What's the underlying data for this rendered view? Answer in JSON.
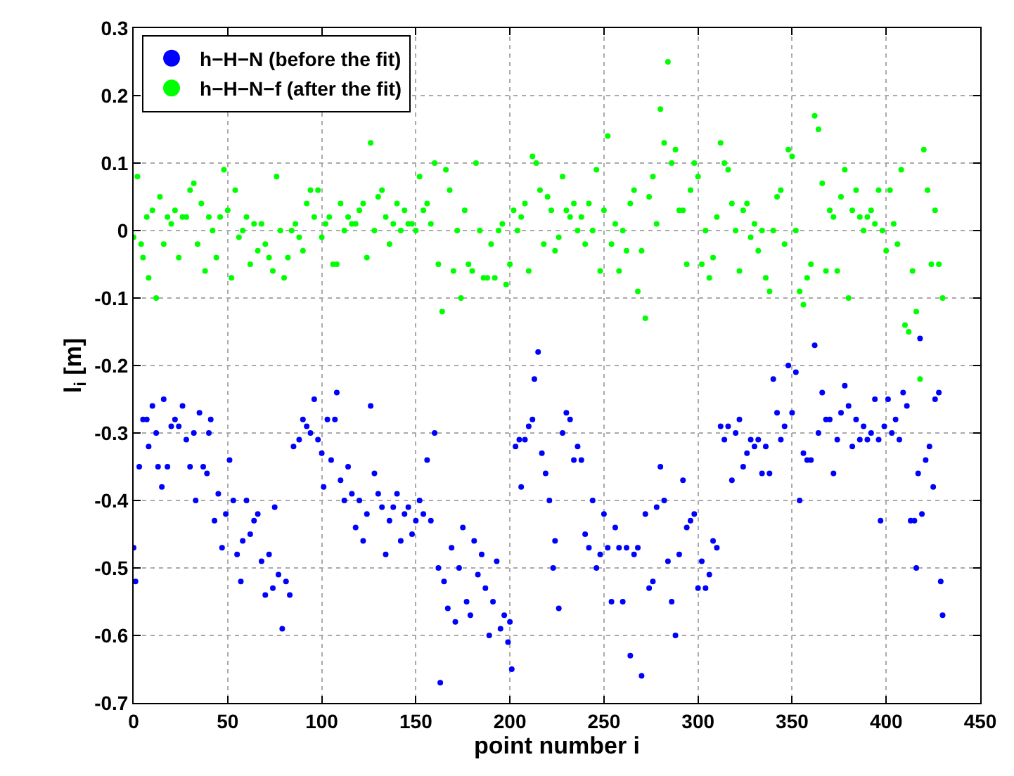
{
  "chart_data": {
    "type": "scatter",
    "xlabel": "point number i",
    "ylabel": "l$_{i}$ [m]",
    "xlim": [
      0,
      450
    ],
    "xticks": [
      0,
      50,
      100,
      150,
      200,
      250,
      300,
      350,
      400,
      450
    ],
    "ylim": [
      -0.7,
      0.3
    ],
    "yticks": [
      -0.7,
      -0.6,
      -0.5,
      -0.4,
      -0.3,
      -0.2,
      -0.1,
      0,
      0.1,
      0.2,
      0.3
    ],
    "grid": true,
    "legend": "top left",
    "marker": "circle",
    "series": [
      {
        "name": "h−H−N (before the fit)",
        "color": "#0000ff",
        "x": [
          0,
          1,
          3,
          5,
          7,
          8,
          10,
          12,
          13,
          15,
          16,
          18,
          20,
          22,
          24,
          26,
          28,
          30,
          32,
          33,
          35,
          37,
          39,
          40,
          41,
          43,
          45,
          47,
          49,
          51,
          53,
          55,
          57,
          58,
          60,
          62,
          64,
          66,
          68,
          70,
          72,
          74,
          75,
          77,
          79,
          81,
          83,
          85,
          88,
          90,
          92,
          94,
          96,
          98,
          100,
          101,
          103,
          105,
          107,
          108,
          110,
          112,
          114,
          116,
          118,
          120,
          122,
          124,
          126,
          128,
          130,
          132,
          134,
          136,
          138,
          140,
          142,
          144,
          146,
          148,
          150,
          152,
          154,
          156,
          158,
          160,
          162,
          163,
          165,
          167,
          169,
          171,
          173,
          175,
          177,
          179,
          181,
          183,
          185,
          187,
          189,
          191,
          193,
          195,
          197,
          199,
          200,
          201,
          203,
          205,
          206,
          208,
          210,
          212,
          213,
          215,
          217,
          219,
          221,
          223,
          224,
          226,
          228,
          230,
          232,
          234,
          236,
          238,
          240,
          242,
          244,
          246,
          248,
          250,
          252,
          254,
          256,
          258,
          260,
          262,
          264,
          266,
          268,
          270,
          272,
          274,
          276,
          278,
          280,
          282,
          284,
          286,
          288,
          290,
          292,
          294,
          296,
          298,
          300,
          302,
          304,
          306,
          308,
          310,
          312,
          314,
          316,
          318,
          320,
          322,
          324,
          326,
          328,
          330,
          332,
          334,
          336,
          338,
          340,
          342,
          344,
          346,
          348,
          350,
          352,
          354,
          356,
          358,
          360,
          362,
          364,
          366,
          368,
          370,
          372,
          374,
          376,
          378,
          380,
          382,
          384,
          386,
          388,
          390,
          392,
          394,
          396,
          397,
          399,
          401,
          403,
          405,
          407,
          409,
          411,
          413,
          415,
          416,
          417,
          418,
          419,
          421,
          423,
          425,
          426,
          428,
          429,
          430
        ],
        "values": [
          -0.47,
          -0.52,
          -0.35,
          -0.28,
          -0.28,
          -0.32,
          -0.26,
          -0.3,
          -0.35,
          -0.38,
          -0.25,
          -0.35,
          -0.29,
          -0.28,
          -0.29,
          -0.26,
          -0.31,
          -0.35,
          -0.3,
          -0.4,
          -0.27,
          -0.35,
          -0.36,
          -0.3,
          -0.28,
          -0.43,
          -0.39,
          -0.47,
          -0.42,
          -0.34,
          -0.4,
          -0.48,
          -0.52,
          -0.46,
          -0.4,
          -0.45,
          -0.43,
          -0.42,
          -0.49,
          -0.54,
          -0.48,
          -0.53,
          -0.41,
          -0.51,
          -0.59,
          -0.52,
          -0.54,
          -0.32,
          -0.31,
          -0.28,
          -0.29,
          -0.3,
          -0.25,
          -0.31,
          -0.33,
          -0.38,
          -0.28,
          -0.34,
          -0.28,
          -0.24,
          -0.37,
          -0.4,
          -0.35,
          -0.39,
          -0.44,
          -0.4,
          -0.46,
          -0.42,
          -0.26,
          -0.36,
          -0.39,
          -0.41,
          -0.48,
          -0.43,
          -0.41,
          -0.39,
          -0.46,
          -0.42,
          -0.41,
          -0.45,
          -0.43,
          -0.4,
          -0.42,
          -0.34,
          -0.43,
          -0.3,
          -0.5,
          -0.67,
          -0.52,
          -0.56,
          -0.47,
          -0.58,
          -0.5,
          -0.44,
          -0.55,
          -0.57,
          -0.46,
          -0.51,
          -0.48,
          -0.53,
          -0.6,
          -0.55,
          -0.49,
          -0.59,
          -0.57,
          -0.61,
          -0.58,
          -0.65,
          -0.32,
          -0.31,
          -0.38,
          -0.31,
          -0.29,
          -0.28,
          -0.22,
          -0.18,
          -0.33,
          -0.36,
          -0.4,
          -0.5,
          -0.46,
          -0.56,
          -0.3,
          -0.27,
          -0.28,
          -0.34,
          -0.32,
          -0.34,
          -0.45,
          -0.47,
          -0.4,
          -0.5,
          -0.48,
          -0.42,
          -0.47,
          -0.55,
          -0.44,
          -0.47,
          -0.55,
          -0.47,
          -0.63,
          -0.48,
          -0.47,
          -0.66,
          -0.42,
          -0.53,
          -0.52,
          -0.41,
          -0.35,
          -0.4,
          -0.49,
          -0.55,
          -0.6,
          -0.48,
          -0.37,
          -0.44,
          -0.43,
          -0.42,
          -0.53,
          -0.49,
          -0.53,
          -0.51,
          -0.46,
          -0.47,
          -0.29,
          -0.31,
          -0.29,
          -0.37,
          -0.3,
          -0.28,
          -0.35,
          -0.33,
          -0.31,
          -0.32,
          -0.31,
          -0.36,
          -0.32,
          -0.36,
          -0.22,
          -0.27,
          -0.31,
          -0.29,
          -0.2,
          -0.27,
          -0.21,
          -0.4,
          -0.33,
          -0.34,
          -0.34,
          -0.17,
          -0.3,
          -0.24,
          -0.28,
          -0.28,
          -0.36,
          -0.31,
          -0.27,
          -0.23,
          -0.26,
          -0.32,
          -0.28,
          -0.31,
          -0.29,
          -0.31,
          -0.3,
          -0.25,
          -0.31,
          -0.43,
          -0.29,
          -0.25,
          -0.3,
          -0.28,
          -0.31,
          -0.24,
          -0.26,
          -0.43,
          -0.43,
          -0.5,
          -0.36,
          -0.16,
          -0.42,
          -0.34,
          -0.32,
          -0.38,
          -0.25,
          -0.24,
          -0.52,
          -0.57
        ]
      },
      {
        "name": "h−H−N−f (after the fit)",
        "color": "#00ff00",
        "x": [
          0,
          2,
          4,
          5,
          7,
          8,
          10,
          12,
          14,
          16,
          18,
          20,
          22,
          24,
          26,
          28,
          30,
          32,
          34,
          36,
          38,
          40,
          42,
          44,
          46,
          48,
          50,
          52,
          54,
          56,
          58,
          60,
          62,
          64,
          66,
          68,
          70,
          72,
          74,
          76,
          78,
          80,
          82,
          84,
          86,
          88,
          90,
          92,
          94,
          96,
          98,
          100,
          102,
          104,
          106,
          108,
          110,
          112,
          114,
          116,
          118,
          120,
          122,
          124,
          126,
          128,
          130,
          132,
          134,
          136,
          138,
          140,
          142,
          144,
          146,
          148,
          150,
          152,
          154,
          156,
          158,
          160,
          162,
          164,
          166,
          168,
          170,
          172,
          174,
          176,
          178,
          180,
          182,
          184,
          186,
          188,
          190,
          192,
          194,
          196,
          198,
          200,
          202,
          204,
          206,
          208,
          210,
          212,
          214,
          216,
          218,
          220,
          222,
          224,
          226,
          228,
          230,
          232,
          234,
          236,
          238,
          240,
          242,
          244,
          246,
          248,
          250,
          252,
          254,
          256,
          258,
          260,
          262,
          264,
          266,
          268,
          270,
          272,
          274,
          276,
          278,
          280,
          282,
          284,
          286,
          288,
          290,
          292,
          294,
          296,
          298,
          300,
          302,
          304,
          306,
          308,
          310,
          312,
          314,
          316,
          318,
          320,
          322,
          324,
          326,
          328,
          330,
          332,
          334,
          336,
          338,
          340,
          342,
          344,
          346,
          348,
          350,
          352,
          354,
          356,
          358,
          360,
          362,
          364,
          366,
          368,
          370,
          372,
          374,
          376,
          378,
          380,
          382,
          384,
          386,
          388,
          390,
          392,
          394,
          396,
          398,
          400,
          402,
          404,
          406,
          408,
          410,
          412,
          414,
          416,
          418,
          420,
          422,
          424,
          426,
          428,
          430
        ],
        "values": [
          -0.01,
          0.08,
          -0.02,
          -0.04,
          0.02,
          -0.07,
          0.03,
          -0.1,
          0.05,
          -0.02,
          0.02,
          0.01,
          0.03,
          -0.04,
          0.02,
          0.02,
          0.06,
          0.07,
          -0.02,
          0.04,
          -0.06,
          0.02,
          0.0,
          -0.04,
          0.02,
          0.09,
          0.03,
          -0.07,
          0.06,
          -0.01,
          0.0,
          0.02,
          -0.05,
          0.01,
          -0.03,
          0.01,
          -0.02,
          -0.04,
          -0.06,
          0.08,
          0.0,
          -0.07,
          -0.04,
          0.0,
          0.01,
          -0.01,
          -0.03,
          0.04,
          0.06,
          0.02,
          0.06,
          -0.01,
          0.01,
          0.02,
          -0.05,
          -0.05,
          0.04,
          0.0,
          0.02,
          0.01,
          0.01,
          0.03,
          0.04,
          -0.04,
          0.13,
          0.0,
          0.05,
          0.06,
          0.02,
          -0.02,
          0.01,
          0.04,
          0.0,
          0.03,
          0.01,
          0.01,
          0.0,
          0.08,
          0.03,
          0.04,
          0.01,
          0.1,
          -0.05,
          -0.12,
          0.09,
          0.06,
          -0.06,
          0.0,
          -0.1,
          0.03,
          -0.05,
          -0.06,
          0.1,
          0.0,
          -0.07,
          -0.07,
          -0.02,
          -0.07,
          0.0,
          0.01,
          -0.08,
          -0.05,
          0.03,
          0.0,
          0.02,
          0.04,
          -0.06,
          0.11,
          0.1,
          0.06,
          -0.02,
          0.05,
          0.03,
          -0.03,
          -0.01,
          0.08,
          0.03,
          0.02,
          0.04,
          0.0,
          0.02,
          -0.02,
          0.04,
          0.0,
          0.09,
          -0.06,
          0.03,
          0.14,
          -0.02,
          0.01,
          -0.06,
          0.0,
          -0.03,
          0.04,
          0.06,
          -0.09,
          -0.03,
          -0.13,
          0.05,
          0.08,
          0.01,
          0.18,
          0.13,
          0.25,
          0.1,
          0.12,
          0.03,
          0.03,
          -0.05,
          0.06,
          0.1,
          0.08,
          -0.05,
          0.0,
          -0.07,
          -0.04,
          0.02,
          0.13,
          0.1,
          0.09,
          0.04,
          0.0,
          -0.06,
          0.03,
          0.04,
          -0.01,
          0.01,
          -0.03,
          0.0,
          -0.07,
          -0.09,
          0.0,
          0.05,
          0.06,
          -0.02,
          0.12,
          0.11,
          0.0,
          -0.09,
          -0.11,
          -0.07,
          -0.05,
          0.17,
          0.15,
          0.07,
          -0.06,
          0.03,
          0.02,
          -0.06,
          0.05,
          0.09,
          -0.1,
          0.03,
          0.06,
          0.02,
          0.0,
          0.02,
          0.03,
          0.01,
          0.06,
          0.0,
          -0.03,
          0.06,
          0.01,
          -0.02,
          0.09,
          -0.14,
          -0.15,
          -0.06,
          -0.12,
          -0.22,
          0.12,
          0.06,
          -0.05,
          0.03,
          -0.05,
          -0.1
        ]
      }
    ]
  }
}
